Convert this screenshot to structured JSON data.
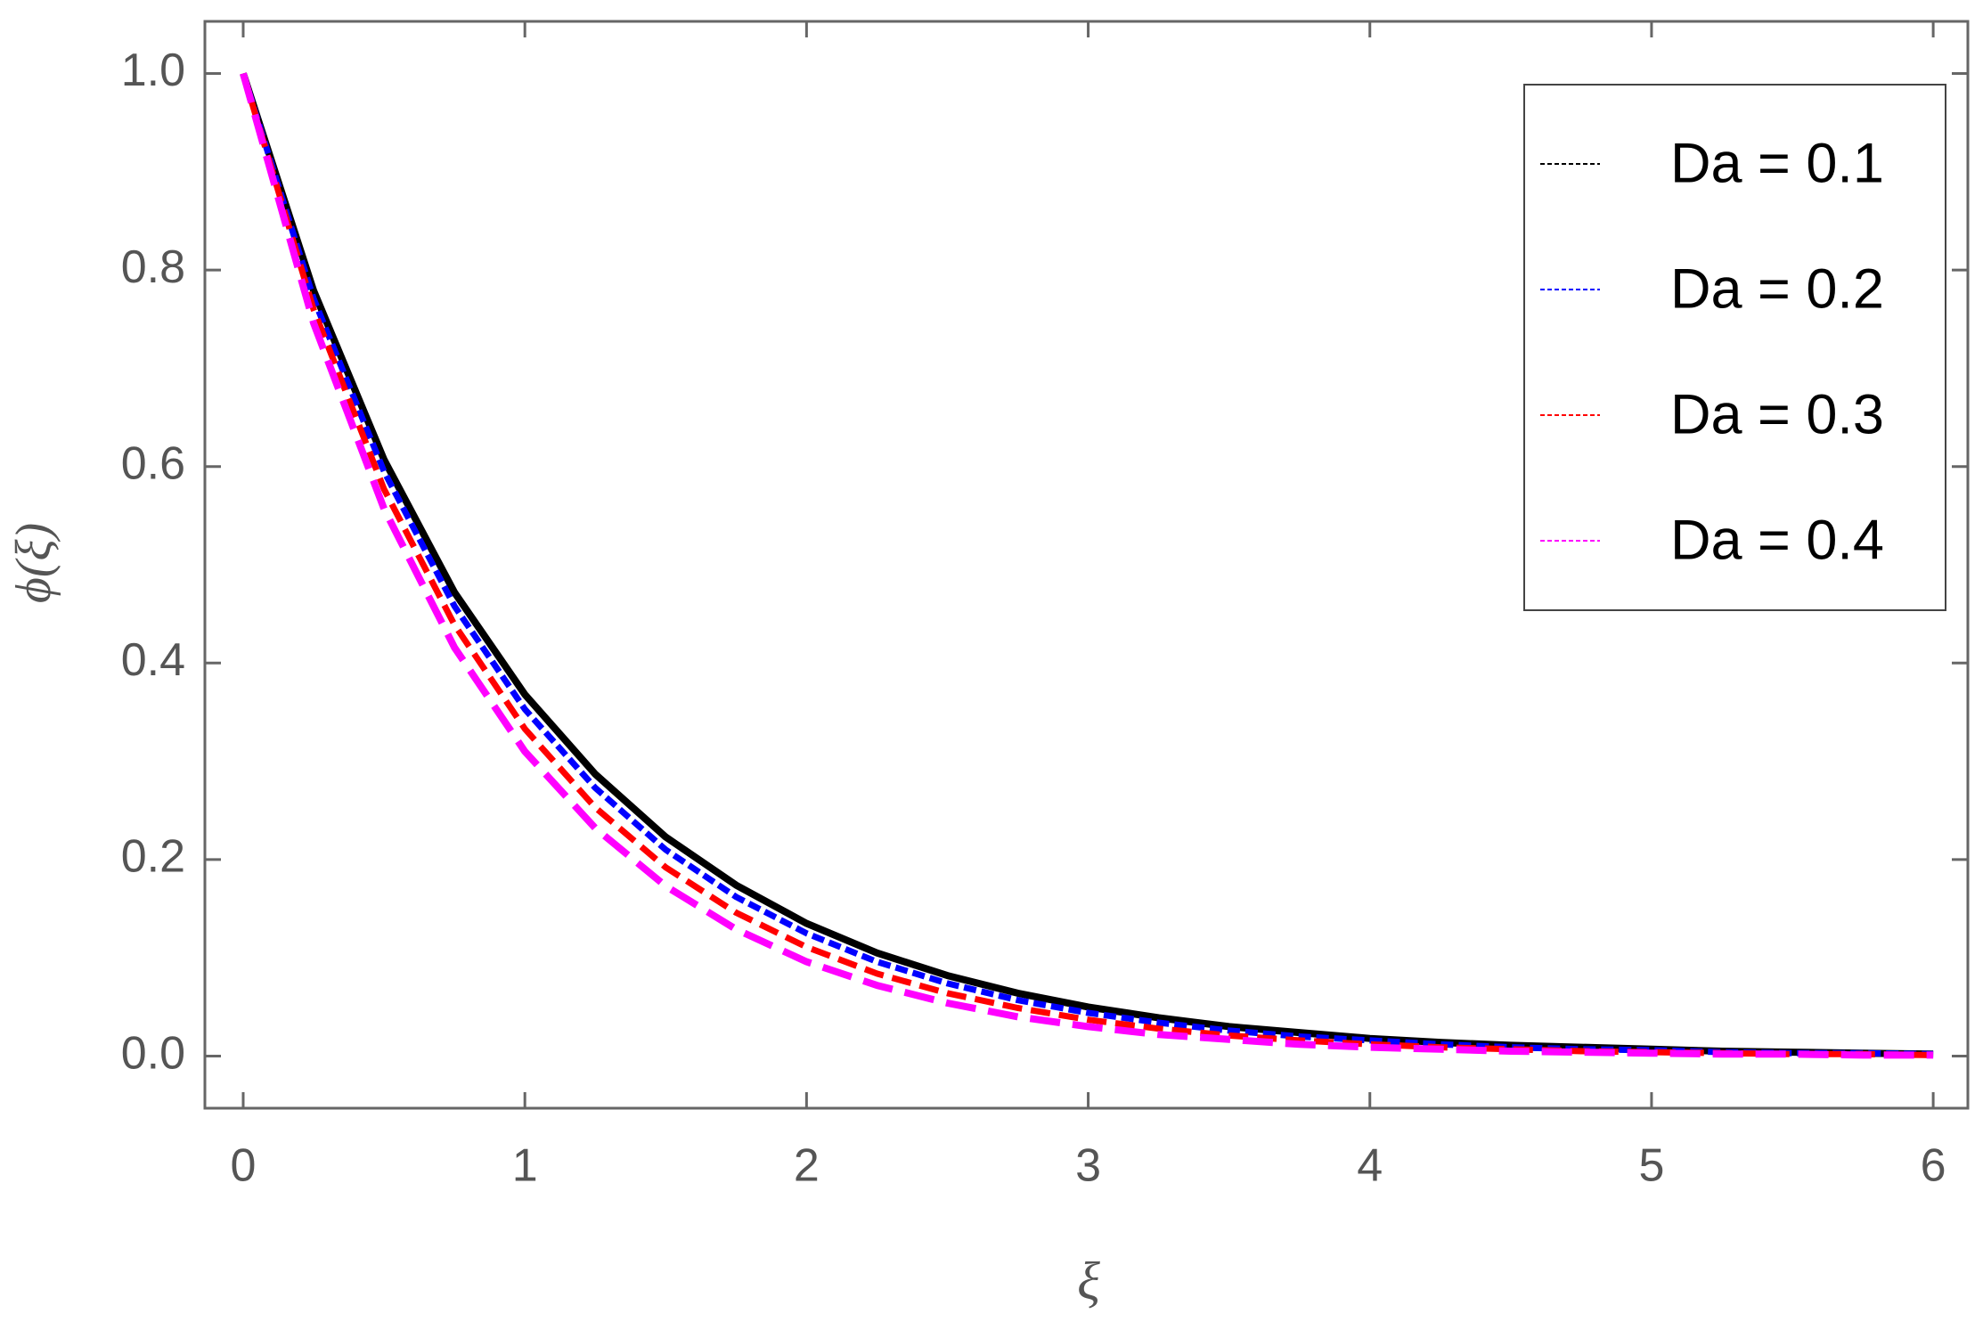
{
  "chart_data": {
    "type": "line",
    "x_label": "ξ",
    "y_label": "ϕ(ξ)",
    "x": [
      0,
      0.25,
      0.5,
      0.75,
      1,
      1.25,
      1.5,
      1.75,
      2,
      2.25,
      2.5,
      2.75,
      3,
      3.25,
      3.5,
      3.75,
      4,
      4.25,
      4.5,
      4.75,
      5,
      5.25,
      5.5,
      5.75,
      6
    ],
    "series": [
      {
        "name": "Da = 0.1",
        "color": "#000000",
        "values": [
          1,
          0.779,
          0.607,
          0.472,
          0.368,
          0.287,
          0.223,
          0.174,
          0.135,
          0.105,
          0.082,
          0.064,
          0.05,
          0.039,
          0.03,
          0.024,
          0.018,
          0.014,
          0.011,
          0.009,
          0.007,
          0.005,
          0.004,
          0.003,
          0.002
        ]
      },
      {
        "name": "Da = 0.2",
        "color": "#0000ff",
        "values": [
          1,
          0.771,
          0.595,
          0.458,
          0.353,
          0.273,
          0.21,
          0.162,
          0.125,
          0.096,
          0.074,
          0.057,
          0.044,
          0.034,
          0.026,
          0.02,
          0.016,
          0.012,
          0.009,
          0.007,
          0.006,
          0.004,
          0.003,
          0.003,
          0.002
        ]
      },
      {
        "name": "Da = 0.3",
        "color": "#ff0000",
        "values": [
          1,
          0.76,
          0.577,
          0.439,
          0.333,
          0.253,
          0.192,
          0.146,
          0.111,
          0.084,
          0.064,
          0.049,
          0.037,
          0.028,
          0.021,
          0.016,
          0.012,
          0.009,
          0.007,
          0.005,
          0.004,
          0.003,
          0.002,
          0.002,
          0.001
        ]
      },
      {
        "name": "Da = 0.4",
        "color": "#ff00ff",
        "values": [
          1,
          0.746,
          0.557,
          0.416,
          0.31,
          0.232,
          0.173,
          0.129,
          0.096,
          0.072,
          0.054,
          0.04,
          0.03,
          0.022,
          0.017,
          0.012,
          0.009,
          0.007,
          0.005,
          0.004,
          0.003,
          0.002,
          0.002,
          0.001,
          0.001
        ]
      }
    ],
    "xlim": [
      -0.136,
      6.123
    ],
    "ylim": [
      -0.053,
      1.053
    ],
    "xticks": [
      0,
      1,
      2,
      3,
      4,
      5,
      6
    ],
    "yticks": [
      {
        "value": 0,
        "label": "0.0"
      },
      {
        "value": 0.2,
        "label": "0.2"
      },
      {
        "value": 0.4,
        "label": "0.4"
      },
      {
        "value": 0.6,
        "label": "0.6"
      },
      {
        "value": 0.8,
        "label": "0.8"
      },
      {
        "value": 1,
        "label": "1.0"
      }
    ],
    "legend": "top-right"
  }
}
